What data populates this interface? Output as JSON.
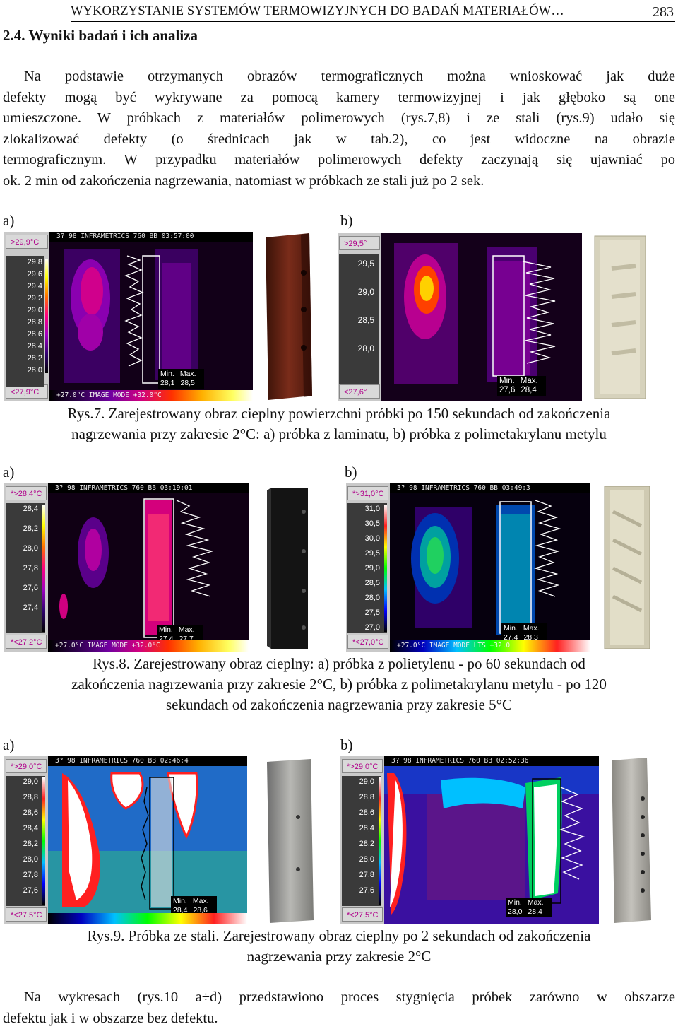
{
  "header": {
    "title": "WYKORZYSTANIE SYSTEMÓW TERMOWIZYJNYCH DO BADAŃ MATERIAŁÓW…",
    "page": "283"
  },
  "section": {
    "title": "2.4. Wyniki badań i ich analiza"
  },
  "intro_lines": [
    "Na podstawie otrzymanych obrazów termograficznych można wnioskować jak duże",
    "defekty mogą być wykrywane za pomocą kamery termowizyjnej i jak głęboko są one",
    "umieszczone. W próbkach z materiałów polimerowych (rys.7,8) i ze stali (rys.9) udało się",
    "zlokalizować defekty (o średnicach jak w tab.2), co jest widoczne na obrazie",
    "termograficznym. W przypadku materiałów polimerowych defekty zaczynają się ujawniać po",
    "ok. 2 min od zakończenia nagrzewania, natomiast w próbkach ze stali już po 2 sek."
  ],
  "labels": {
    "a": "a)",
    "b": "b)"
  },
  "figures": [
    {
      "panels": [
        {
          "top": ">29,9°C",
          "bottom": "<27,9°C",
          "ticks": [
            "29,8",
            "29,6",
            "29,4",
            "29,2",
            "29,0",
            "28,8",
            "28,6",
            "28,4",
            "28,2",
            "28,0"
          ],
          "bar": "3?   98 INFRAMETRICS 760 BB 03:57:00",
          "foot": "+27.0°C IMAGE MODE   +32.0°C",
          "min_label": "Min.",
          "max_label": "Max.",
          "min": "28,1",
          "max": "28,5"
        },
        {
          "top": ">29,5°",
          "bottom": "<27,6°",
          "ticks": [
            "29,5",
            "29,0",
            "28,5",
            "28,0"
          ],
          "bar": "",
          "foot": "",
          "min_label": "Min.",
          "max_label": "Max.",
          "min": "27,6",
          "max": "28,4"
        }
      ],
      "caption": [
        "Rys.7. Zarejestrowany obraz cieplny powierzchni próbki po 150 sekundach od zakończenia",
        "nagrzewania przy zakresie 2°C: a) próbka z laminatu, b) próbka z polimetakrylanu metylu"
      ]
    },
    {
      "panels": [
        {
          "top": "*>28,4°C",
          "bottom": "*<27,2°C",
          "ticks": [
            "28,4",
            "28,2",
            "28,0",
            "27,8",
            "27,6",
            "27,4"
          ],
          "bar": "3?   98 INFRAMETRICS 760 BB 03:19:01",
          "foot": "+27.0°C IMAGE MODE   +32.0°C",
          "min_label": "Min.",
          "max_label": "Max.",
          "min": "27,4",
          "max": "27,7"
        },
        {
          "top": "*>31,0°C",
          "bottom": "*<27,0°C",
          "ticks": [
            "31,0",
            "30,5",
            "30,0",
            "29,5",
            "29,0",
            "28,5",
            "28,0",
            "27,5",
            "27,0"
          ],
          "bar": "3?   98 INFRAMETRICS 760 BB 03:49:3",
          "foot": "+27.0°C IMAGE MODE   LTS +32.0",
          "min_label": "Min.",
          "max_label": "Max.",
          "min": "27,4",
          "max": "28,3"
        }
      ],
      "caption": [
        "Rys.8. Zarejestrowany obraz cieplny: a) próbka z polietylenu - po 60 sekundach od",
        "zakończenia nagrzewania przy zakresie 2°C, b) próbka z polimetakrylanu metylu - po 120",
        "sekundach od zakończenia nagrzewania przy zakresie 5°C"
      ]
    },
    {
      "panels": [
        {
          "top": "*>29,0°C",
          "bottom": "*<27,5°C",
          "ticks": [
            "29,0",
            "28,8",
            "28,6",
            "28,4",
            "28,2",
            "28,0",
            "27,8",
            "27,6"
          ],
          "bar": "3?   98 INFRAMETRICS 760 BB 02:46:4",
          "foot": "",
          "min_label": "Min.",
          "max_label": "Max.",
          "min": "28,4",
          "max": "28,6"
        },
        {
          "top": "*>29,0°C",
          "bottom": "*<27,5°C",
          "ticks": [
            "29,0",
            "28,8",
            "28,6",
            "28,4",
            "28,2",
            "28,0",
            "27,8",
            "27,6"
          ],
          "bar": "3?   98 INFRAMETRICS 760 BB 02:52:36",
          "foot": "",
          "min_label": "Min.",
          "max_label": "Max.",
          "min": "28,0",
          "max": "28,4"
        }
      ],
      "caption": [
        "Rys.9. Próbka ze stali. Zarejestrowany obraz cieplny po 2 sekundach od zakończenia",
        "nagrzewania przy zakresie 2°C"
      ]
    }
  ],
  "closing_lines": [
    "Na wykresach (rys.10 a÷d) przedstawiono proces stygnięcia próbek zarówno w obszarze",
    "defektu jak i w obszarze bez defektu."
  ],
  "colors": {
    "magenta": "#c0008a",
    "hot": "#ffffff",
    "bg": "#000000"
  }
}
